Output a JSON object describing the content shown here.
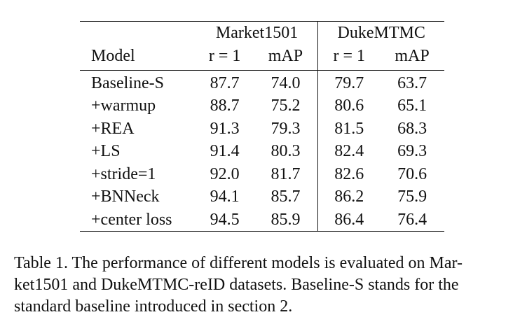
{
  "table": {
    "dataset_headers": [
      "Market1501",
      "DukeMTMC"
    ],
    "model_header": "Model",
    "metric_headers": [
      "r = 1",
      "mAP",
      "r = 1",
      "mAP"
    ],
    "rows": [
      {
        "model": "Baseline-S",
        "values": [
          "87.7",
          "74.0",
          "79.7",
          "63.7"
        ]
      },
      {
        "model": "+warmup",
        "values": [
          "88.7",
          "75.2",
          "80.6",
          "65.1"
        ]
      },
      {
        "model": "+REA",
        "values": [
          "91.3",
          "79.3",
          "81.5",
          "68.3"
        ]
      },
      {
        "model": "+LS",
        "values": [
          "91.4",
          "80.3",
          "82.4",
          "69.3"
        ]
      },
      {
        "model": "+stride=1",
        "values": [
          "92.0",
          "81.7",
          "82.6",
          "70.6"
        ]
      },
      {
        "model": "+BNNeck",
        "values": [
          "94.1",
          "85.7",
          "86.2",
          "75.9"
        ]
      },
      {
        "model": "+center loss",
        "values": [
          "94.5",
          "85.9",
          "86.4",
          "76.4"
        ]
      }
    ]
  },
  "caption": "Table 1. The performance of different models is evaluated on Market1501 and DukeMTMC-reID datasets. Baseline-S stands for the standard baseline introduced in section 2.",
  "caption_lines": [
    "Table 1. The performance of different models is evaluated on Mar-",
    "ket1501 and DukeMTMC-reID datasets. Baseline-S stands for the",
    "standard baseline introduced in section 2."
  ]
}
